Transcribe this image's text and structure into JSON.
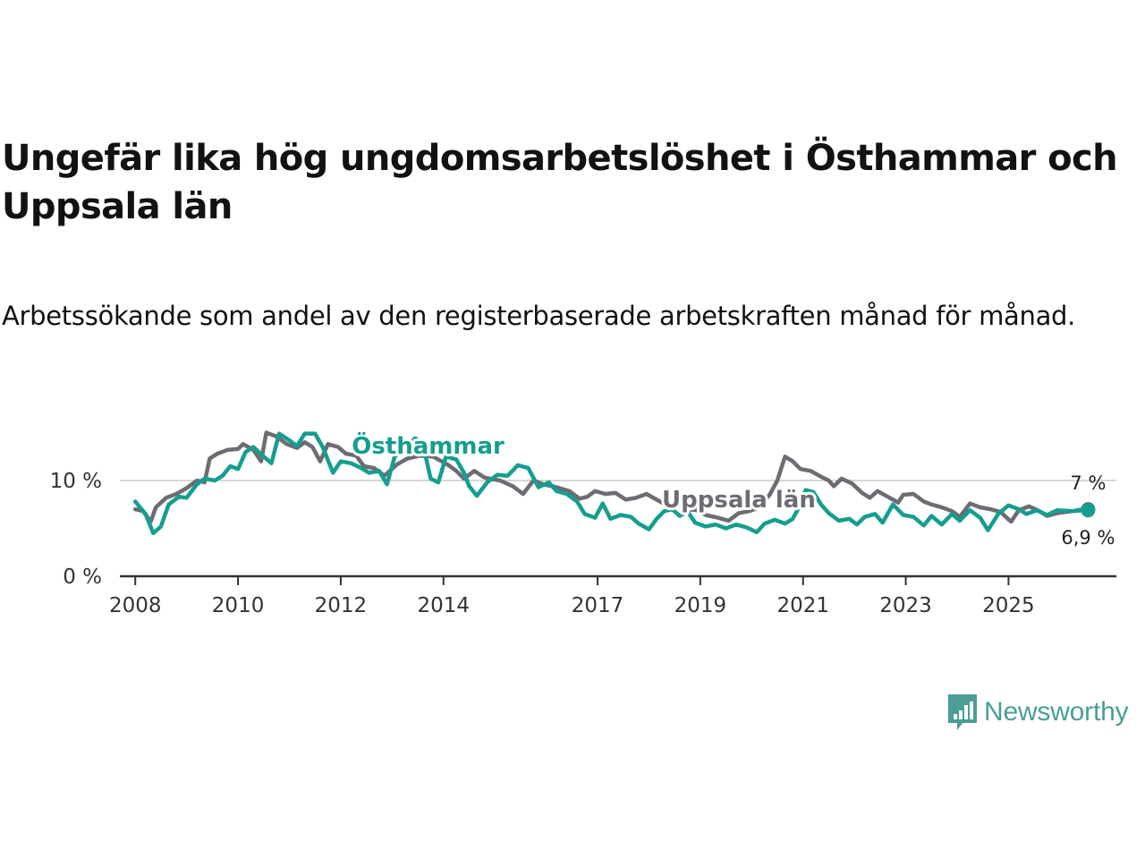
{
  "title": "Ungefär lika hög ungdomsarbetslöshet i Östhammar och Uppsala län",
  "subtitle": "Arbetssökande som andel av den registerbaserade arbetskraften månad för månad.",
  "brand": {
    "name": "Newsworthy",
    "color": "#4a9e96",
    "icon": "bar-chart-speech-bubble-icon"
  },
  "chart_data": {
    "type": "line",
    "title": "Ungefär lika hög ungdomsarbetslöshet i Östhammar och Uppsala län",
    "subtitle": "Arbetssökande som andel av den registerbaserade arbetskraften månad för månad.",
    "xlabel": "",
    "ylabel": "",
    "xlim": [
      2007.7,
      2027.1
    ],
    "ylim": [
      0,
      15
    ],
    "grid": true,
    "yticks": [
      {
        "value": 0,
        "label": "0 %"
      },
      {
        "value": 10,
        "label": "10 %"
      }
    ],
    "xticks": [
      {
        "value": 2008,
        "label": "2008"
      },
      {
        "value": 2010,
        "label": "2010"
      },
      {
        "value": 2012,
        "label": "2012"
      },
      {
        "value": 2014,
        "label": "2014"
      },
      {
        "value": 2017,
        "label": "2017"
      },
      {
        "value": 2019,
        "label": "2019"
      },
      {
        "value": 2021,
        "label": "2021"
      },
      {
        "value": 2023,
        "label": "2023"
      },
      {
        "value": 2025,
        "label": "2025"
      }
    ],
    "series": [
      {
        "name": "Uppsala län",
        "color": "#6e6b72",
        "label_at": [
          2019.75,
          7.2
        ],
        "end_label": "7 %",
        "end_value": 7.0,
        "points": [
          [
            2008.0,
            7.0
          ],
          [
            2008.15,
            6.8
          ],
          [
            2008.3,
            5.7
          ],
          [
            2008.4,
            7.2
          ],
          [
            2008.6,
            8.2
          ],
          [
            2008.8,
            8.6
          ],
          [
            2009.0,
            9.2
          ],
          [
            2009.2,
            10.0
          ],
          [
            2009.35,
            9.8
          ],
          [
            2009.45,
            12.3
          ],
          [
            2009.6,
            12.8
          ],
          [
            2009.8,
            13.2
          ],
          [
            2010.0,
            13.3
          ],
          [
            2010.1,
            13.8
          ],
          [
            2010.3,
            13.2
          ],
          [
            2010.45,
            12.0
          ],
          [
            2010.55,
            15.0
          ],
          [
            2010.75,
            14.6
          ],
          [
            2010.95,
            13.8
          ],
          [
            2011.15,
            13.4
          ],
          [
            2011.3,
            14.0
          ],
          [
            2011.45,
            13.5
          ],
          [
            2011.6,
            12.0
          ],
          [
            2011.75,
            13.8
          ],
          [
            2011.95,
            13.5
          ],
          [
            2012.1,
            12.8
          ],
          [
            2012.3,
            12.6
          ],
          [
            2012.45,
            11.5
          ],
          [
            2012.65,
            11.3
          ],
          [
            2012.85,
            10.5
          ],
          [
            2013.1,
            11.7
          ],
          [
            2013.3,
            12.3
          ],
          [
            2013.55,
            12.6
          ],
          [
            2013.8,
            12.5
          ],
          [
            2014.1,
            11.6
          ],
          [
            2014.25,
            11.0
          ],
          [
            2014.4,
            10.2
          ],
          [
            2014.6,
            11.0
          ],
          [
            2014.8,
            10.3
          ],
          [
            2015.1,
            10.0
          ],
          [
            2015.35,
            9.4
          ],
          [
            2015.55,
            8.6
          ],
          [
            2015.75,
            10.0
          ],
          [
            2015.95,
            9.6
          ],
          [
            2016.2,
            9.3
          ],
          [
            2016.45,
            8.9
          ],
          [
            2016.65,
            8.1
          ],
          [
            2016.8,
            8.3
          ],
          [
            2016.95,
            8.9
          ],
          [
            2017.15,
            8.6
          ],
          [
            2017.35,
            8.7
          ],
          [
            2017.55,
            8.0
          ],
          [
            2017.75,
            8.2
          ],
          [
            2017.95,
            8.6
          ],
          [
            2018.15,
            8.0
          ],
          [
            2018.35,
            7.4
          ],
          [
            2018.55,
            7.6
          ],
          [
            2018.75,
            7.0
          ],
          [
            2018.95,
            6.9
          ],
          [
            2019.1,
            6.4
          ],
          [
            2019.35,
            6.1
          ],
          [
            2019.55,
            5.8
          ],
          [
            2019.75,
            6.6
          ],
          [
            2019.95,
            6.8
          ],
          [
            2020.15,
            7.2
          ],
          [
            2020.35,
            8.5
          ],
          [
            2020.5,
            10.0
          ],
          [
            2020.65,
            12.5
          ],
          [
            2020.8,
            12.0
          ],
          [
            2020.95,
            11.2
          ],
          [
            2021.15,
            11.0
          ],
          [
            2021.35,
            10.4
          ],
          [
            2021.5,
            10.0
          ],
          [
            2021.6,
            9.4
          ],
          [
            2021.75,
            10.2
          ],
          [
            2021.95,
            9.7
          ],
          [
            2022.15,
            8.7
          ],
          [
            2022.3,
            8.2
          ],
          [
            2022.45,
            8.9
          ],
          [
            2022.65,
            8.3
          ],
          [
            2022.85,
            7.7
          ],
          [
            2022.95,
            8.5
          ],
          [
            2023.15,
            8.6
          ],
          [
            2023.35,
            7.8
          ],
          [
            2023.5,
            7.5
          ],
          [
            2023.7,
            7.2
          ],
          [
            2023.9,
            6.8
          ],
          [
            2024.05,
            6.2
          ],
          [
            2024.25,
            7.6
          ],
          [
            2024.45,
            7.2
          ],
          [
            2024.65,
            7.0
          ],
          [
            2024.85,
            6.7
          ],
          [
            2024.95,
            6.2
          ],
          [
            2025.05,
            5.7
          ],
          [
            2025.2,
            6.9
          ],
          [
            2025.4,
            7.3
          ],
          [
            2025.6,
            6.8
          ],
          [
            2025.75,
            6.3
          ],
          [
            2025.95,
            6.6
          ],
          [
            2026.25,
            6.8
          ],
          [
            2026.45,
            7.0
          ],
          [
            2026.55,
            7.0
          ]
        ]
      },
      {
        "name": "Östhammar",
        "color": "#159e8f",
        "label_at": [
          2013.7,
          12.8
        ],
        "end_label": "6,9 %",
        "end_value": 6.9,
        "points": [
          [
            2008.0,
            7.8
          ],
          [
            2008.2,
            6.5
          ],
          [
            2008.35,
            4.5
          ],
          [
            2008.5,
            5.2
          ],
          [
            2008.65,
            7.5
          ],
          [
            2008.85,
            8.3
          ],
          [
            2009.0,
            8.2
          ],
          [
            2009.2,
            9.6
          ],
          [
            2009.35,
            10.2
          ],
          [
            2009.55,
            10.0
          ],
          [
            2009.7,
            10.5
          ],
          [
            2009.85,
            11.5
          ],
          [
            2010.0,
            11.2
          ],
          [
            2010.15,
            13.0
          ],
          [
            2010.3,
            13.5
          ],
          [
            2010.5,
            12.5
          ],
          [
            2010.65,
            11.8
          ],
          [
            2010.8,
            14.9
          ],
          [
            2011.0,
            14.2
          ],
          [
            2011.15,
            13.6
          ],
          [
            2011.3,
            14.9
          ],
          [
            2011.5,
            14.9
          ],
          [
            2011.65,
            13.5
          ],
          [
            2011.85,
            10.8
          ],
          [
            2012.0,
            12.0
          ],
          [
            2012.2,
            11.8
          ],
          [
            2012.4,
            11.3
          ],
          [
            2012.55,
            10.8
          ],
          [
            2012.75,
            11.0
          ],
          [
            2012.9,
            9.6
          ],
          [
            2013.05,
            12.5
          ],
          [
            2013.25,
            13.4
          ],
          [
            2013.45,
            14.4
          ],
          [
            2013.6,
            13.8
          ],
          [
            2013.75,
            10.2
          ],
          [
            2013.9,
            9.8
          ],
          [
            2014.05,
            12.5
          ],
          [
            2014.25,
            12.2
          ],
          [
            2014.4,
            10.8
          ],
          [
            2014.5,
            9.4
          ],
          [
            2014.65,
            8.4
          ],
          [
            2014.85,
            9.8
          ],
          [
            2015.05,
            10.6
          ],
          [
            2015.25,
            10.5
          ],
          [
            2015.45,
            11.6
          ],
          [
            2015.65,
            11.3
          ],
          [
            2015.85,
            9.3
          ],
          [
            2016.05,
            9.8
          ],
          [
            2016.2,
            8.9
          ],
          [
            2016.4,
            8.6
          ],
          [
            2016.6,
            7.8
          ],
          [
            2016.75,
            6.5
          ],
          [
            2016.95,
            6.1
          ],
          [
            2017.1,
            7.6
          ],
          [
            2017.25,
            6.0
          ],
          [
            2017.45,
            6.4
          ],
          [
            2017.65,
            6.2
          ],
          [
            2017.8,
            5.5
          ],
          [
            2018.0,
            4.9
          ],
          [
            2018.15,
            6.0
          ],
          [
            2018.3,
            6.8
          ],
          [
            2018.45,
            7.0
          ],
          [
            2018.6,
            6.3
          ],
          [
            2018.75,
            6.8
          ],
          [
            2018.9,
            5.6
          ],
          [
            2019.1,
            5.2
          ],
          [
            2019.3,
            5.4
          ],
          [
            2019.5,
            5.0
          ],
          [
            2019.7,
            5.4
          ],
          [
            2019.9,
            5.1
          ],
          [
            2020.1,
            4.6
          ],
          [
            2020.25,
            5.5
          ],
          [
            2020.45,
            5.9
          ],
          [
            2020.65,
            5.5
          ],
          [
            2020.8,
            6.0
          ],
          [
            2020.95,
            7.5
          ],
          [
            2021.05,
            9.0
          ],
          [
            2021.2,
            8.8
          ],
          [
            2021.35,
            7.5
          ],
          [
            2021.5,
            6.6
          ],
          [
            2021.7,
            5.8
          ],
          [
            2021.9,
            6.0
          ],
          [
            2022.05,
            5.4
          ],
          [
            2022.2,
            6.2
          ],
          [
            2022.4,
            6.5
          ],
          [
            2022.55,
            5.6
          ],
          [
            2022.75,
            7.5
          ],
          [
            2022.95,
            6.4
          ],
          [
            2023.15,
            6.2
          ],
          [
            2023.35,
            5.3
          ],
          [
            2023.5,
            6.3
          ],
          [
            2023.7,
            5.4
          ],
          [
            2023.9,
            6.5
          ],
          [
            2024.05,
            5.8
          ],
          [
            2024.25,
            6.9
          ],
          [
            2024.45,
            6.1
          ],
          [
            2024.6,
            4.8
          ],
          [
            2024.8,
            6.5
          ],
          [
            2025.0,
            7.4
          ],
          [
            2025.2,
            7.0
          ],
          [
            2025.35,
            6.5
          ],
          [
            2025.55,
            6.9
          ],
          [
            2025.75,
            6.4
          ],
          [
            2025.95,
            6.9
          ],
          [
            2026.25,
            6.8
          ],
          [
            2026.45,
            6.9
          ],
          [
            2026.55,
            6.9
          ]
        ]
      }
    ]
  }
}
